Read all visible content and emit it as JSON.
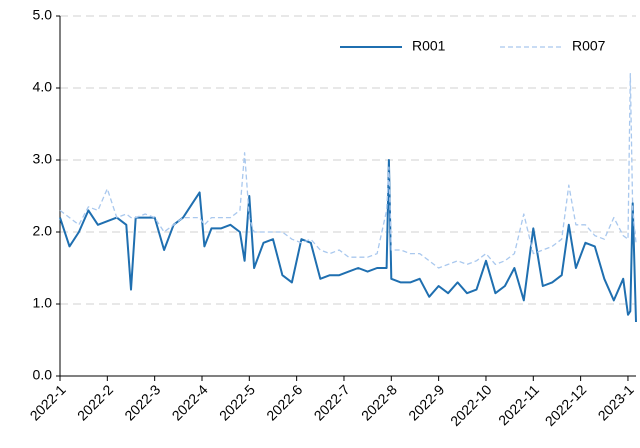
{
  "chart_data": {
    "type": "line",
    "x": [
      0,
      0.2,
      0.4,
      0.6,
      0.8,
      1.0,
      1.2,
      1.4,
      1.5,
      1.6,
      1.8,
      2.0,
      2.2,
      2.4,
      2.6,
      2.8,
      2.95,
      3.05,
      3.2,
      3.4,
      3.6,
      3.8,
      3.9,
      4.0,
      4.1,
      4.3,
      4.5,
      4.7,
      4.9,
      5.1,
      5.3,
      5.5,
      5.7,
      5.9,
      6.1,
      6.3,
      6.5,
      6.7,
      6.9,
      6.95,
      7.0,
      7.2,
      7.4,
      7.6,
      7.8,
      8.0,
      8.2,
      8.4,
      8.6,
      8.8,
      9.0,
      9.2,
      9.4,
      9.6,
      9.8,
      10.0,
      10.2,
      10.4,
      10.6,
      10.75,
      10.9,
      11.1,
      11.3,
      11.5,
      11.7,
      11.9,
      12.0,
      12.05,
      12.1,
      12.17
    ],
    "series": [
      {
        "name": "R001",
        "color": "#1f6fb0",
        "dashed": false,
        "values": [
          2.2,
          1.8,
          2.0,
          2.3,
          2.1,
          2.15,
          2.2,
          2.1,
          1.2,
          2.2,
          2.2,
          2.2,
          1.75,
          2.1,
          2.2,
          2.4,
          2.55,
          1.8,
          2.05,
          2.05,
          2.1,
          2.0,
          1.6,
          2.5,
          1.5,
          1.85,
          1.9,
          1.4,
          1.3,
          1.9,
          1.85,
          1.35,
          1.4,
          1.4,
          1.45,
          1.5,
          1.45,
          1.5,
          1.5,
          3.0,
          1.35,
          1.3,
          1.3,
          1.35,
          1.1,
          1.25,
          1.15,
          1.3,
          1.15,
          1.2,
          1.6,
          1.15,
          1.25,
          1.5,
          1.05,
          2.05,
          1.25,
          1.3,
          1.4,
          2.1,
          1.5,
          1.85,
          1.8,
          1.35,
          1.05,
          1.35,
          0.85,
          0.9,
          2.4,
          0.75
        ]
      },
      {
        "name": "R007",
        "color": "#a9c8ee",
        "dashed": true,
        "values": [
          2.3,
          2.2,
          2.1,
          2.35,
          2.3,
          2.6,
          2.2,
          2.25,
          2.2,
          2.2,
          2.25,
          2.2,
          2.0,
          2.1,
          2.2,
          2.2,
          2.2,
          2.1,
          2.2,
          2.2,
          2.2,
          2.3,
          3.1,
          2.2,
          2.0,
          2.0,
          2.0,
          2.0,
          1.9,
          1.85,
          1.9,
          1.75,
          1.7,
          1.75,
          1.65,
          1.65,
          1.65,
          1.7,
          2.3,
          2.9,
          1.75,
          1.75,
          1.7,
          1.7,
          1.6,
          1.5,
          1.55,
          1.6,
          1.55,
          1.6,
          1.7,
          1.55,
          1.6,
          1.7,
          2.25,
          1.7,
          1.75,
          1.8,
          1.9,
          2.65,
          2.1,
          2.1,
          1.95,
          1.9,
          2.2,
          1.95,
          1.9,
          4.2,
          2.3,
          1.85
        ]
      }
    ],
    "xlim": [
      0,
      12.17
    ],
    "xticks": [
      {
        "value": 0,
        "label": "2022-1"
      },
      {
        "value": 1,
        "label": "2022-2"
      },
      {
        "value": 2,
        "label": "2022-3"
      },
      {
        "value": 3,
        "label": "2022-4"
      },
      {
        "value": 4,
        "label": "2022-5"
      },
      {
        "value": 5,
        "label": "2022-6"
      },
      {
        "value": 6,
        "label": "2022-7"
      },
      {
        "value": 7,
        "label": "2022-8"
      },
      {
        "value": 8,
        "label": "2022-9"
      },
      {
        "value": 9,
        "label": "2022-10"
      },
      {
        "value": 10,
        "label": "2022-11"
      },
      {
        "value": 11,
        "label": "2022-12"
      },
      {
        "value": 12,
        "label": "2023-1"
      }
    ],
    "ylim": [
      0,
      5
    ],
    "yticks": [
      {
        "value": 0,
        "label": "0.0"
      },
      {
        "value": 1,
        "label": "1.0"
      },
      {
        "value": 2,
        "label": "2.0"
      },
      {
        "value": 3,
        "label": "3.0"
      },
      {
        "value": 4,
        "label": "4.0"
      },
      {
        "value": 5,
        "label": "5.0"
      }
    ],
    "grid": true,
    "legend": "upper right"
  }
}
